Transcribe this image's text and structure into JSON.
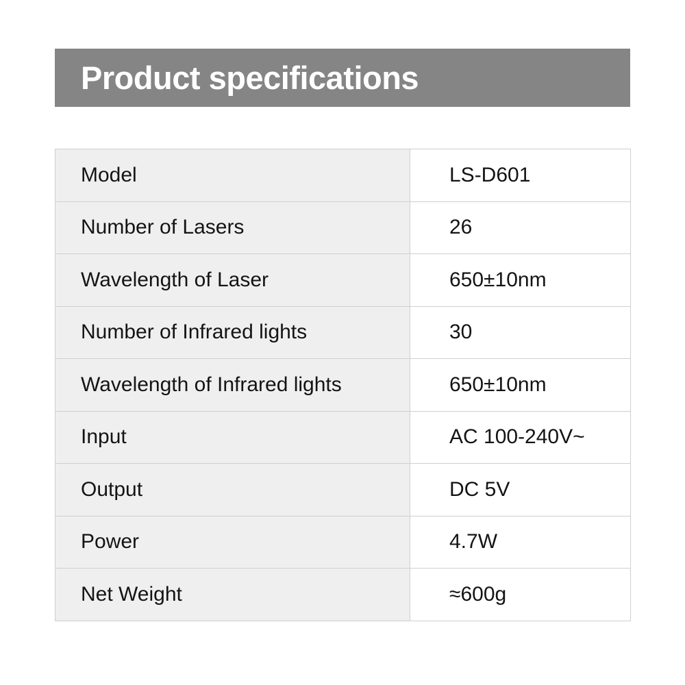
{
  "title": "Product specifications",
  "specs": [
    {
      "label": "Model",
      "value": "LS-D601"
    },
    {
      "label": "Number of Lasers",
      "value": "26"
    },
    {
      "label": "Wavelength of Laser",
      "value": "650±10nm"
    },
    {
      "label": "Number of Infrared lights",
      "value": "30"
    },
    {
      "label": "Wavelength of Infrared lights",
      "value": "650±10nm"
    },
    {
      "label": "Input",
      "value": "AC 100-240V~"
    },
    {
      "label": "Output",
      "value": "DC 5V"
    },
    {
      "label": "Power",
      "value": "4.7W"
    },
    {
      "label": "Net Weight",
      "value": "≈600g"
    }
  ],
  "colors": {
    "banner": "#858585",
    "label_cell": "#efefef",
    "border": "#cfcfcf"
  }
}
